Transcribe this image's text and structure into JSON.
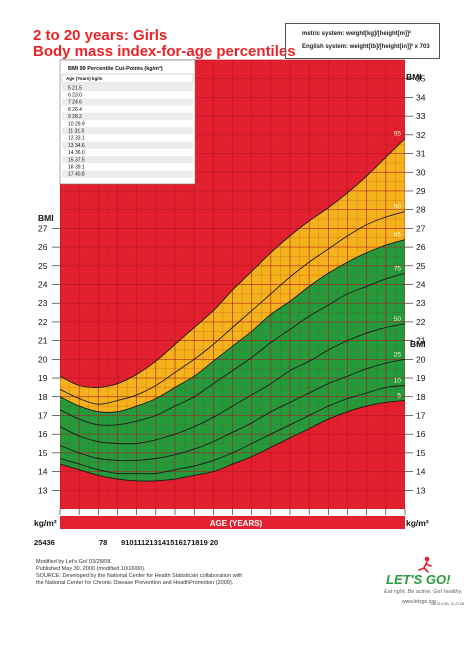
{
  "header": {
    "title_line1": "2 to 20 years: Girls",
    "title_line2": "Body mass index-for-age percentiles",
    "formula_metric": "metric system: weight[kg]/[height[m]]²",
    "formula_english": "English system: weight[lb]/[height[in]]² x 703"
  },
  "cutpoints": {
    "title": "BMI 99 Percentile Cut-Points (kg/m²)",
    "header": "Age (Years) kg/m",
    "rows": [
      "5 21.5",
      "6 23.0",
      "7 24.6",
      "8 26.4",
      "9 28.2",
      "10 29.9",
      "11 31.5",
      "12 33.1",
      "13 34.6",
      "14 36.0",
      "15 37.5",
      "16 39.1",
      "17 40.8"
    ]
  },
  "axis_labels": {
    "bmi": "BMI",
    "unit": "kg/m²",
    "age": "AGE (YEARS)",
    "x_left_text": "25436",
    "x_left_gap": "78",
    "x_row_text": "910111213141516171819 20"
  },
  "footer": {
    "line1": "Modified by Let's Go! 03/28/08.",
    "line2": "Published May 30, 2000 (modified 10/16/00).",
    "line3": "SOURCE: Developed by the National Center for Health Statisticsin collaboration with",
    "line4": "the National Center for Chronic Disease Prevention and HealthPromotion (2000)."
  },
  "logo": {
    "brand": "LET'S GO!",
    "tagline": "Eat right. Be active. Get healthy.",
    "url": "www.letsgo.org"
  },
  "doc_code": "131.014.08 | 10.21.08",
  "colors": {
    "obese_zone": "#e3202f",
    "overweight_zone": "#f4b21c",
    "healthy_zone": "#239b3b",
    "underweight_zone": "#e3202f",
    "grid": "#b01822",
    "title": "#e8242a"
  },
  "chart_data": {
    "type": "line",
    "x_label": "AGE (YEARS)",
    "y_label": "BMI",
    "y_unit": "kg/m²",
    "xlim": [
      2,
      20
    ],
    "ylim": [
      12,
      36
    ],
    "yticks_left": [
      13,
      14,
      15,
      16,
      17,
      18,
      19,
      20,
      21,
      22,
      23,
      24,
      25,
      26,
      27
    ],
    "yticks_right": [
      13,
      14,
      15,
      16,
      17,
      18,
      19,
      20,
      21,
      22,
      23,
      24,
      25,
      26,
      27,
      28,
      29,
      30,
      31,
      32,
      33,
      34,
      35
    ],
    "grid": true,
    "zones": [
      {
        "between": [
          "95",
          "top"
        ],
        "color": "obese_zone"
      },
      {
        "between": [
          "85",
          "95"
        ],
        "color": "overweight_zone"
      },
      {
        "between": [
          "5",
          "85"
        ],
        "color": "healthy_zone"
      },
      {
        "between": [
          "bottom",
          "5"
        ],
        "color": "underweight_zone"
      }
    ],
    "x": [
      2,
      3,
      4,
      5,
      6,
      7,
      8,
      9,
      10,
      11,
      12,
      13,
      14,
      15,
      16,
      17,
      18,
      19,
      20
    ],
    "series": [
      {
        "name": "5",
        "values": [
          14.4,
          14.1,
          13.8,
          13.6,
          13.5,
          13.5,
          13.6,
          13.8,
          14.0,
          14.4,
          14.8,
          15.3,
          15.8,
          16.3,
          16.8,
          17.2,
          17.5,
          17.7,
          17.8
        ]
      },
      {
        "name": "10",
        "values": [
          14.7,
          14.4,
          14.1,
          13.9,
          13.9,
          13.9,
          14.1,
          14.3,
          14.6,
          15.0,
          15.5,
          16.0,
          16.5,
          17.0,
          17.5,
          17.9,
          18.2,
          18.5,
          18.6
        ]
      },
      {
        "name": "25",
        "values": [
          15.4,
          15.0,
          14.7,
          14.6,
          14.6,
          14.7,
          14.9,
          15.2,
          15.6,
          16.1,
          16.6,
          17.2,
          17.7,
          18.2,
          18.7,
          19.1,
          19.5,
          19.8,
          20.0
        ]
      },
      {
        "name": "50",
        "values": [
          16.4,
          15.9,
          15.6,
          15.5,
          15.5,
          15.7,
          16.0,
          16.4,
          16.9,
          17.5,
          18.1,
          18.7,
          19.4,
          19.9,
          20.5,
          21.0,
          21.4,
          21.7,
          21.9
        ]
      },
      {
        "name": "75",
        "values": [
          17.3,
          16.8,
          16.5,
          16.5,
          16.7,
          17.0,
          17.5,
          18.0,
          18.7,
          19.4,
          20.1,
          20.9,
          21.6,
          22.3,
          22.9,
          23.5,
          23.9,
          24.3,
          24.6
        ]
      },
      {
        "name": "85",
        "values": [
          18.0,
          17.5,
          17.2,
          17.2,
          17.5,
          17.9,
          18.5,
          19.1,
          19.9,
          20.7,
          21.5,
          22.4,
          23.1,
          23.9,
          24.6,
          25.2,
          25.7,
          26.1,
          26.4
        ]
      },
      {
        "name": "90",
        "values": [
          18.4,
          17.9,
          17.6,
          17.8,
          18.1,
          18.6,
          19.3,
          20.0,
          20.8,
          21.7,
          22.6,
          23.5,
          24.4,
          25.2,
          25.9,
          26.6,
          27.2,
          27.6,
          27.9
        ]
      },
      {
        "name": "95",
        "values": [
          19.1,
          18.6,
          18.5,
          18.7,
          19.2,
          19.9,
          20.8,
          21.7,
          22.6,
          23.7,
          24.7,
          25.7,
          26.6,
          27.4,
          28.1,
          28.9,
          29.8,
          30.8,
          31.8
        ]
      }
    ]
  }
}
